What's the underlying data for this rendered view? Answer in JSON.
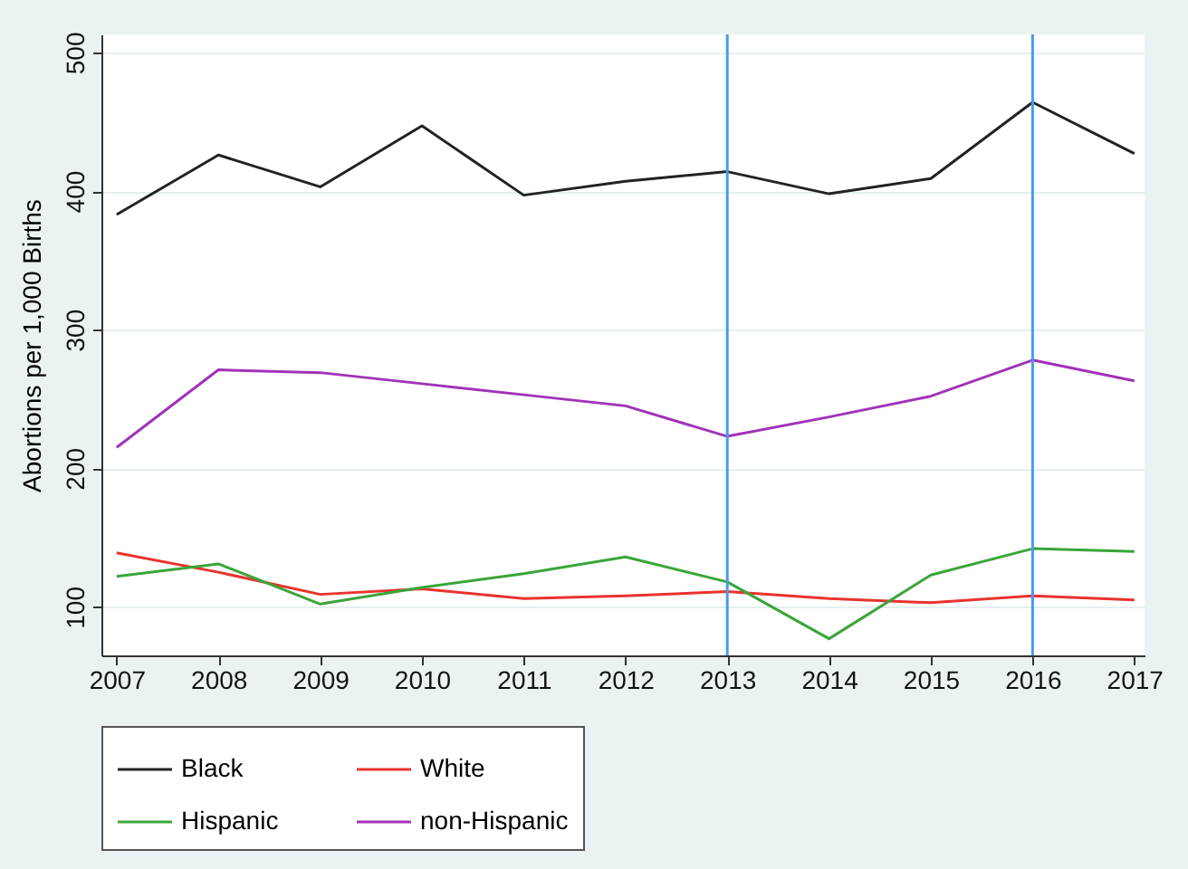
{
  "chart_data": {
    "type": "line",
    "ylabel": "Abortions per 1,000 Births",
    "x": [
      2007,
      2008,
      2009,
      2010,
      2011,
      2012,
      2013,
      2014,
      2015,
      2016,
      2017
    ],
    "series": [
      {
        "name": "Black",
        "color": "#222222",
        "values": [
          383,
          426,
          403,
          447,
          397,
          407,
          414,
          398,
          409,
          464,
          427
        ]
      },
      {
        "name": "White",
        "color": "#e8332e",
        "values": [
          139,
          125,
          109,
          113,
          106,
          108,
          111,
          106,
          103,
          108,
          105
        ]
      },
      {
        "name": "Hispanic",
        "color": "#3aa53a",
        "values": [
          122,
          131,
          102,
          114,
          124,
          136,
          118,
          77,
          123,
          142,
          140
        ]
      },
      {
        "name": "non-Hispanic",
        "color": "#a033b8",
        "values": [
          215,
          271,
          269,
          261,
          253,
          245,
          223,
          237,
          252,
          278,
          263
        ]
      }
    ],
    "xlim": [
      2006.85,
      2017.1
    ],
    "xticks": [
      2007,
      2008,
      2009,
      2010,
      2011,
      2012,
      2013,
      2014,
      2015,
      2016,
      2017
    ],
    "ylim": [
      65,
      513
    ],
    "yticks": [
      100,
      200,
      300,
      400,
      500
    ],
    "ref_lines": [
      {
        "axis": "x",
        "value": 2013,
        "color": "#4a9aea"
      },
      {
        "axis": "x",
        "value": 2016,
        "color": "#4a9aea"
      }
    ],
    "grid": "y",
    "legend": "bottom",
    "line_style": "solid",
    "marker": "none"
  }
}
